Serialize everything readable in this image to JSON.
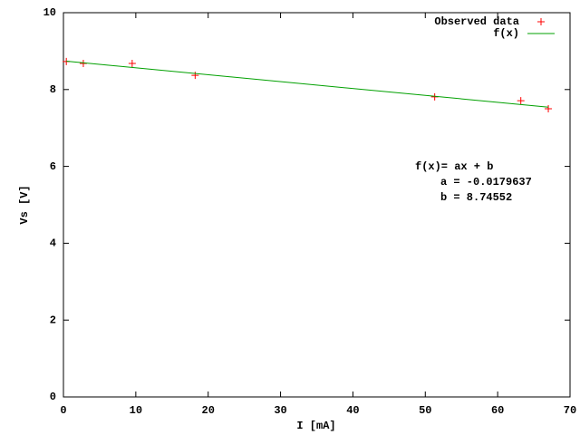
{
  "chart_data": {
    "type": "scatter",
    "xlabel": "I [mA]",
    "ylabel": "Vs [V]",
    "xlim": [
      0,
      70
    ],
    "xticks": [
      0,
      10,
      20,
      30,
      40,
      50,
      60,
      70
    ],
    "ylim": [
      0,
      10
    ],
    "yticks": [
      0,
      2,
      4,
      6,
      8,
      10
    ],
    "grid": false,
    "legend": "top-right",
    "series": [
      {
        "name": "Observed data",
        "color": "#ff0000",
        "mode": "points",
        "x": [
          0.4,
          2.75,
          9.5,
          18.2,
          51.3,
          63.2,
          67.0
        ],
        "values": [
          8.73,
          8.68,
          8.68,
          8.37,
          7.81,
          7.71,
          7.5
        ]
      },
      {
        "name": "f(x)",
        "color": "#00a000",
        "mode": "lines",
        "x": [
          0.4,
          67.0
        ],
        "values": [
          8.7383,
          7.542
        ]
      }
    ],
    "annotations": [
      "f(x)= ax + b",
      "a = -0.0179637",
      "b = 8.74552"
    ]
  }
}
